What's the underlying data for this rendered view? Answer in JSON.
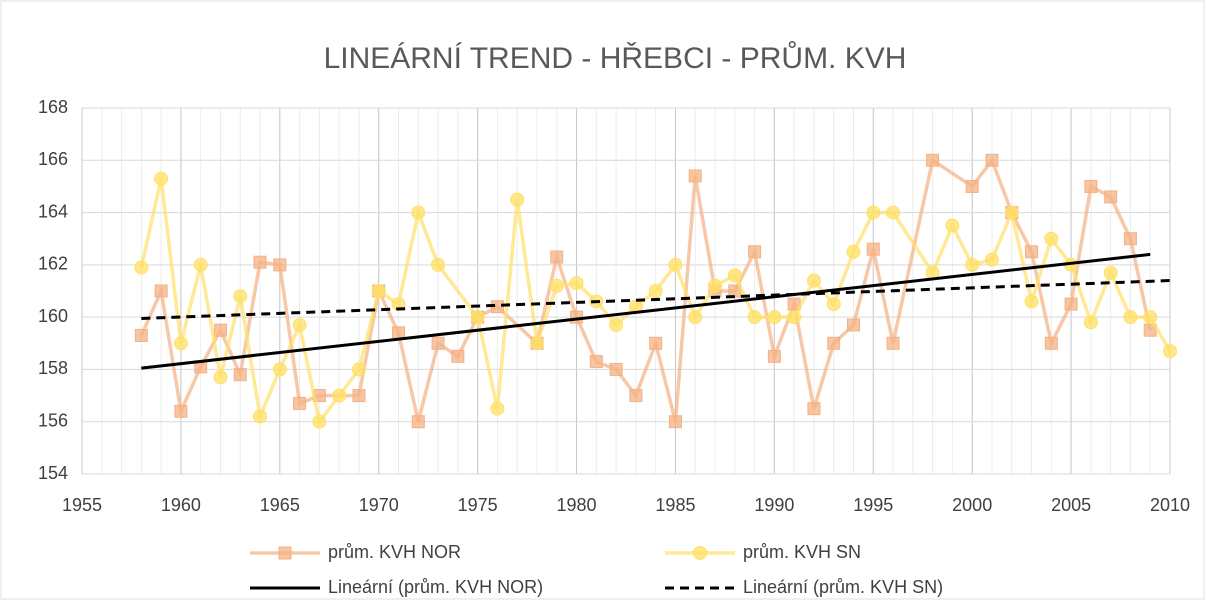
{
  "chart_data": {
    "type": "line",
    "title": "LINEÁRNÍ TREND - HŘEBCI - PRŮM. KVH",
    "xlim": [
      1955,
      2010
    ],
    "xticks": [
      1955,
      1960,
      1965,
      1970,
      1975,
      1980,
      1985,
      1990,
      1995,
      2000,
      2005,
      2010
    ],
    "ylim": [
      154,
      168
    ],
    "yticks": [
      154,
      156,
      158,
      160,
      162,
      164,
      166,
      168
    ],
    "grid": true,
    "series": [
      {
        "name": "prům. KVH NOR",
        "color": "#f4b183",
        "marker": "square",
        "dash": false,
        "x": [
          1958,
          1959,
          1960,
          1961,
          1962,
          1963,
          1964,
          1965,
          1966,
          1967,
          1969,
          1970,
          1971,
          1972,
          1973,
          1974,
          1975,
          1976,
          1978,
          1979,
          1980,
          1981,
          1982,
          1983,
          1984,
          1985,
          1986,
          1987,
          1988,
          1989,
          1990,
          1991,
          1992,
          1993,
          1994,
          1995,
          1996,
          1998,
          2000,
          2001,
          2002,
          2003,
          2004,
          2005,
          2006,
          2007,
          2008,
          2009
        ],
        "values": [
          159.3,
          161,
          156.4,
          158.1,
          159.5,
          157.8,
          162.1,
          162,
          156.7,
          157,
          157,
          161,
          159.4,
          156,
          159,
          158.5,
          160,
          160.4,
          159,
          162.3,
          160,
          158.3,
          158,
          157,
          159,
          156,
          165.4,
          161,
          161,
          162.5,
          158.5,
          160.5,
          156.5,
          159,
          159.7,
          162.6,
          159,
          166,
          165,
          166,
          164,
          162.5,
          159,
          160.5,
          165,
          164.6,
          163,
          159.5
        ]
      },
      {
        "name": "prům. KVH SN",
        "color": "#ffe066",
        "marker": "circle",
        "dash": false,
        "x": [
          1958,
          1959,
          1960,
          1961,
          1962,
          1963,
          1964,
          1965,
          1966,
          1967,
          1968,
          1969,
          1970,
          1971,
          1972,
          1973,
          1975,
          1976,
          1977,
          1978,
          1979,
          1980,
          1981,
          1982,
          1983,
          1984,
          1985,
          1986,
          1987,
          1988,
          1989,
          1990,
          1991,
          1992,
          1993,
          1994,
          1995,
          1996,
          1998,
          1999,
          2000,
          2001,
          2002,
          2003,
          2004,
          2005,
          2006,
          2007,
          2008,
          2009,
          2010
        ],
        "values": [
          161.9,
          165.3,
          159,
          162,
          157.7,
          160.8,
          156.2,
          158,
          159.7,
          156,
          157,
          158,
          161,
          160.5,
          164,
          162,
          160,
          156.5,
          164.5,
          159,
          161.2,
          161.3,
          160.6,
          159.7,
          160.4,
          161,
          162,
          160,
          161.2,
          161.6,
          160,
          160,
          160,
          161.4,
          160.5,
          162.5,
          164,
          164,
          161.7,
          163.5,
          162,
          162.2,
          164,
          160.6,
          163,
          162,
          159.8,
          161.7,
          160,
          160,
          158.7
        ]
      },
      {
        "name": "Lineární (prům. KVH NOR)",
        "color": "#000000",
        "marker": "none",
        "dash": false,
        "x": [
          1958,
          2009
        ],
        "values": [
          158.05,
          162.4
        ]
      },
      {
        "name": "Lineární (prům. KVH SN)",
        "color": "#000000",
        "marker": "none",
        "dash": true,
        "x": [
          1958,
          2010
        ],
        "values": [
          159.95,
          161.4
        ]
      }
    ]
  }
}
